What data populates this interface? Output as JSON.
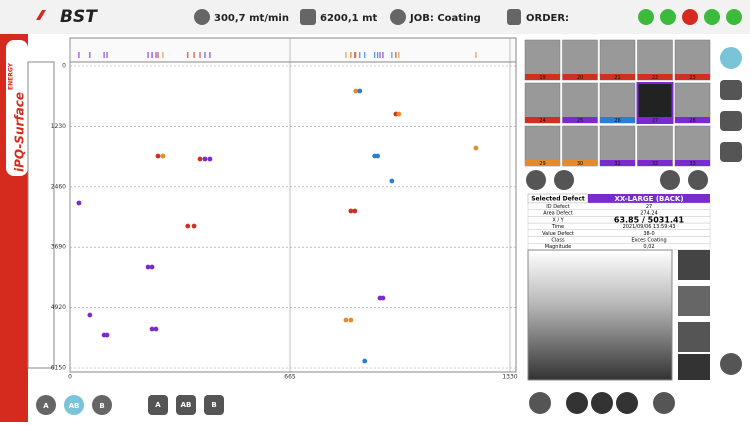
{
  "header": {
    "logo": "BST",
    "speed": "300,7 mt/min",
    "length": "6200,1 mt",
    "job": "JOB: Coating",
    "order": "ORDER:"
  },
  "sidebar": {
    "brand": "iPQ-Surface",
    "super": "ENERGY"
  },
  "plot": {
    "xlim": [
      0,
      1330
    ],
    "ylim": [
      0,
      6150
    ],
    "xticks": [
      0,
      665,
      1330
    ],
    "yticks": [
      0,
      1230,
      2460,
      3690,
      4920,
      6150
    ],
    "points": [
      {
        "x": 864,
        "y": 509,
        "color": "#e8892a"
      },
      {
        "x": 876,
        "y": 509,
        "color": "#2a7fd4"
      },
      {
        "x": 985,
        "y": 978,
        "color": "#d03020"
      },
      {
        "x": 994,
        "y": 978,
        "color": "#e8892a"
      },
      {
        "x": 266,
        "y": 1833,
        "color": "#d03020"
      },
      {
        "x": 281,
        "y": 1833,
        "color": "#e8892a"
      },
      {
        "x": 393,
        "y": 1894,
        "color": "#d03020"
      },
      {
        "x": 408,
        "y": 1894,
        "color": "#7a2bd0"
      },
      {
        "x": 423,
        "y": 1894,
        "color": "#7a2bd0"
      },
      {
        "x": 921,
        "y": 1833,
        "color": "#2a7fd4"
      },
      {
        "x": 930,
        "y": 1833,
        "color": "#2a7fd4"
      },
      {
        "x": 1227,
        "y": 1670,
        "color": "#e8892a"
      },
      {
        "x": 973,
        "y": 2342,
        "color": "#2a7fd4"
      },
      {
        "x": 27,
        "y": 2790,
        "color": "#7a2bd0"
      },
      {
        "x": 849,
        "y": 2953,
        "color": "#d03020"
      },
      {
        "x": 861,
        "y": 2953,
        "color": "#d03020"
      },
      {
        "x": 356,
        "y": 3259,
        "color": "#d03020"
      },
      {
        "x": 375,
        "y": 3259,
        "color": "#d03020"
      },
      {
        "x": 236,
        "y": 4094,
        "color": "#7a2bd0"
      },
      {
        "x": 248,
        "y": 4094,
        "color": "#7a2bd0"
      },
      {
        "x": 937,
        "y": 4725,
        "color": "#7a2bd0"
      },
      {
        "x": 946,
        "y": 4725,
        "color": "#7a2bd0"
      },
      {
        "x": 60,
        "y": 5071,
        "color": "#7a2bd0"
      },
      {
        "x": 834,
        "y": 5173,
        "color": "#e8892a"
      },
      {
        "x": 849,
        "y": 5173,
        "color": "#e8892a"
      },
      {
        "x": 103,
        "y": 5479,
        "color": "#7a2bd0"
      },
      {
        "x": 112,
        "y": 5479,
        "color": "#7a2bd0"
      },
      {
        "x": 248,
        "y": 5356,
        "color": "#7a2bd0"
      },
      {
        "x": 260,
        "y": 5356,
        "color": "#7a2bd0"
      },
      {
        "x": 891,
        "y": 6008,
        "color": "#2a7fd4"
      }
    ]
  },
  "thumbnails": [
    {
      "label": "19",
      "color": "#d03020"
    },
    {
      "label": "20",
      "color": "#d03020"
    },
    {
      "label": "21",
      "color": "#d03020"
    },
    {
      "label": "22",
      "color": "#d03020"
    },
    {
      "label": "23",
      "color": "#d03020"
    },
    {
      "label": "24",
      "color": "#d03020"
    },
    {
      "label": "25",
      "color": "#7a2bd0"
    },
    {
      "label": "26",
      "color": "#2a7fd4"
    },
    {
      "label": "27",
      "color": "#7a2bd0"
    },
    {
      "label": "28",
      "color": "#7a2bd0"
    },
    {
      "label": "29",
      "color": "#e8892a"
    },
    {
      "label": "30",
      "color": "#e8892a"
    },
    {
      "label": "31",
      "color": "#7a2bd0"
    },
    {
      "label": "32",
      "color": "#7a2bd0"
    },
    {
      "label": "33",
      "color": "#7a2bd0"
    }
  ],
  "defect": {
    "title": "Selected Defect",
    "class_name": "XX-LARGE (BACK)",
    "rows": [
      [
        "ID Defect",
        "27"
      ],
      [
        "Area Defect",
        "274.24"
      ],
      [
        "X / Y",
        "63.85 / 5031.41"
      ],
      [
        "Time",
        "2021/09/06 13:59:43"
      ],
      [
        "Value Defect",
        "38-0"
      ],
      [
        "Class",
        "Exces Coating"
      ],
      [
        "Magnitude",
        "0,02"
      ]
    ]
  },
  "buttons": {
    "sides": [
      "A",
      "AB",
      "B"
    ],
    "views": [
      "A",
      "AB",
      "B"
    ]
  }
}
